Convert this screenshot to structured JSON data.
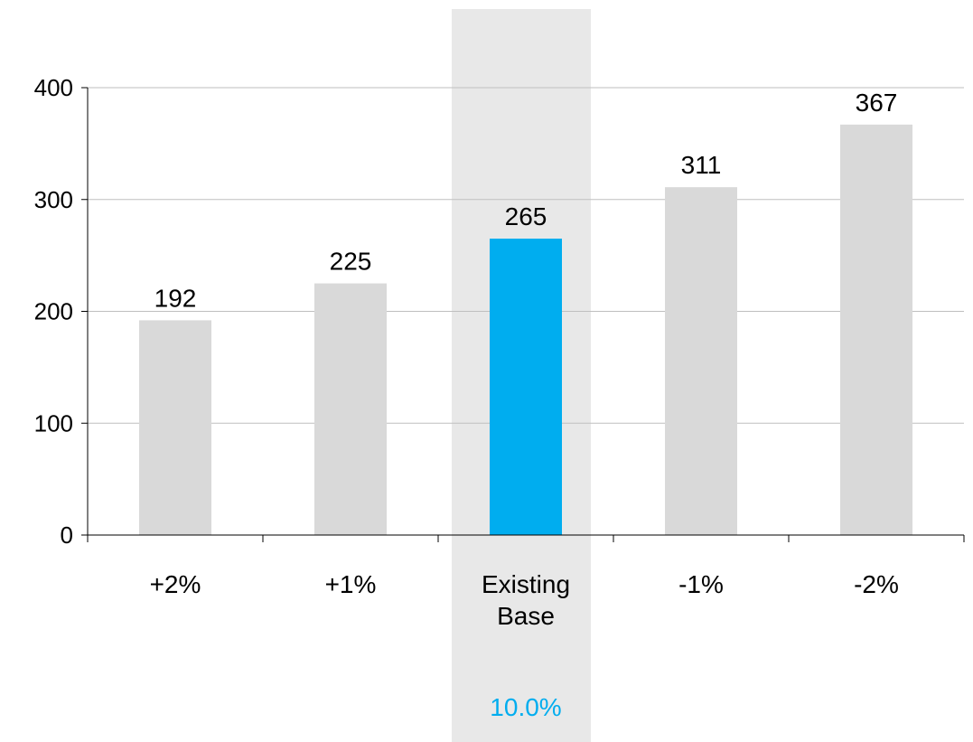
{
  "chart_data": {
    "type": "bar",
    "categories": [
      "+2%",
      "+1%",
      "Existing Base",
      "-1%",
      "-2%"
    ],
    "values": [
      192,
      225,
      265,
      311,
      367
    ],
    "highlighted_category": "Existing Base",
    "highlight_annotation": "10.0%",
    "title": "",
    "xlabel": "",
    "ylabel": "",
    "ylim": [
      0,
      400
    ],
    "yticks": [
      0,
      100,
      200,
      300,
      400
    ],
    "grid": true,
    "legend": "none",
    "colors": {
      "bar": "#d9d9d9",
      "highlight_bar": "#00adef",
      "highlight_band": "#e8e8e8",
      "annotation": "#00adef",
      "gridline": "#bfbfbf",
      "axis": "#000000"
    }
  }
}
